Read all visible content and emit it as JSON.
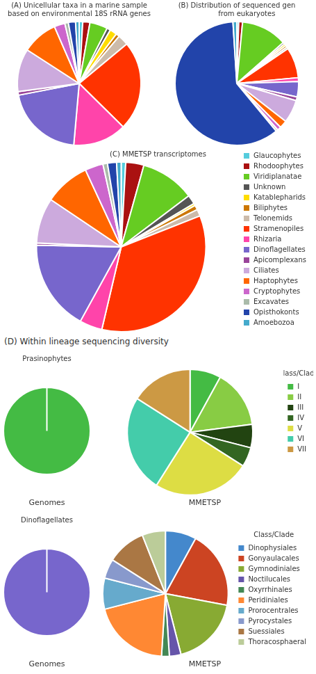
{
  "chart_data": [
    {
      "type": "pie",
      "title": "(A) Unicellular taxa in a marine sample\nbased on environmental 18S rRNA genes",
      "categories": [
        "Glaucophytes",
        "Rhodoophytes",
        "Viridiplanatae",
        "Unknown",
        "Katablepharids",
        "Biliphytes",
        "Telonemids",
        "Stramenopiles",
        "Rhizaria",
        "Dinoflagellates",
        "Apicomplexans",
        "Ciliates",
        "Haptophytes",
        "Cryptophytes",
        "Excavates",
        "Opisthokonts",
        "Amoebozoa"
      ],
      "values": [
        1,
        2,
        5,
        1,
        2,
        1,
        3,
        25,
        15,
        22,
        1,
        12,
        10,
        3,
        1,
        2,
        1
      ],
      "colors": [
        "#55CCDD",
        "#AA1111",
        "#66CC22",
        "#555555",
        "#FFDD00",
        "#CC7700",
        "#CCBBAA",
        "#FF3300",
        "#FF44AA",
        "#7766CC",
        "#994499",
        "#CCAADD",
        "#FF6600",
        "#CC66CC",
        "#AABBAA",
        "#2244AA",
        "#44AACC"
      ]
    },
    {
      "type": "pie",
      "title": "(B) Distribution of sequenced gen\n         from eukaryotes",
      "categories": [
        "Glaucophytes",
        "Rhodoophytes",
        "Viridiplanatae",
        "Unknown",
        "Katablepharids",
        "Biliphytes",
        "Telonemids",
        "Stramenopiles",
        "Rhizaria",
        "Dinoflagellates",
        "Apicomplexans",
        "Ciliates",
        "Haptophytes",
        "Cryptophytes",
        "Excavates",
        "Opisthokonts",
        "Amoebozoa"
      ],
      "values": [
        0.5,
        1,
        12,
        0.5,
        0.5,
        0.5,
        0.5,
        8,
        1,
        4,
        1,
        6,
        2,
        1,
        0.5,
        60,
        1
      ],
      "colors": [
        "#55CCDD",
        "#AA1111",
        "#66CC22",
        "#555555",
        "#FFDD00",
        "#CC7700",
        "#CCBBAA",
        "#FF3300",
        "#FF44AA",
        "#7766CC",
        "#994499",
        "#CCAADD",
        "#FF6600",
        "#CC66CC",
        "#AABBAA",
        "#2244AA",
        "#44AACC"
      ]
    },
    {
      "type": "pie",
      "title": "(C) MMETSP transcriptomes",
      "categories": [
        "Glaucophytes",
        "Rhodoophytes",
        "Viridiplanatae",
        "Unknown",
        "Katablepharids",
        "Biliphytes",
        "Telonemids",
        "Stramenopiles",
        "Rhizaria",
        "Dinoflagellates",
        "Apicomplexans",
        "Ciliates",
        "Haptophytes",
        "Cryptophytes",
        "Excavates",
        "Opisthokonts",
        "Amoebozoa"
      ],
      "values": [
        1,
        4,
        12,
        2,
        0.5,
        1,
        1.5,
        40,
        5,
        20,
        0.5,
        10,
        10,
        4,
        1,
        2,
        1
      ],
      "colors": [
        "#55CCDD",
        "#AA1111",
        "#66CC22",
        "#555555",
        "#FFDD00",
        "#CC7700",
        "#CCBBAA",
        "#FF3300",
        "#FF44AA",
        "#7766CC",
        "#994499",
        "#CCAADD",
        "#FF6600",
        "#CC66CC",
        "#AABBAA",
        "#2244AA",
        "#44AACC"
      ],
      "legend": "right"
    },
    {
      "type": "pie",
      "annotations": [
        "(D) Within lineage sequencing diversity"
      ],
      "title": "Prasinophytes",
      "x_label": "Genomes",
      "values": [
        1
      ],
      "colors": [
        "#44BB44"
      ]
    },
    {
      "type": "pie",
      "x_label": "MMETSP",
      "categories": [
        "I",
        "II",
        "III",
        "IV",
        "V",
        "VI",
        "VII"
      ],
      "values": [
        8,
        15,
        6,
        5,
        25,
        25,
        16
      ],
      "colors": [
        "#44BB44",
        "#88CC44",
        "#224411",
        "#336622",
        "#DDDD44",
        "#44CCAA",
        "#CC9944"
      ],
      "legend": "right",
      "legend_title": "Class/Clade"
    },
    {
      "type": "pie",
      "title": "Dinoflagellates",
      "x_label": "Genomes",
      "values": [
        1
      ],
      "colors": [
        "#7766CC"
      ]
    },
    {
      "type": "pie",
      "x_label": "MMETSP",
      "categories": [
        "Dinophysiales",
        "Gonyaulacales",
        "Gymnodiniales",
        "Noctilucales",
        "Oxyrrhinales",
        "Peridiniales",
        "Prorocentrales",
        "Pyrocystales",
        "Suessiales",
        "Thoracosphaeral"
      ],
      "values": [
        8,
        20,
        18,
        3,
        2,
        20,
        8,
        5,
        10,
        6
      ],
      "colors": [
        "#4488CC",
        "#CC4422",
        "#88AA33",
        "#6655AA",
        "#448855",
        "#FF8833",
        "#66AACC",
        "#8899CC",
        "#AA7744",
        "#BBCC99"
      ],
      "legend": "right",
      "legend_title": "Class/Clade"
    }
  ]
}
